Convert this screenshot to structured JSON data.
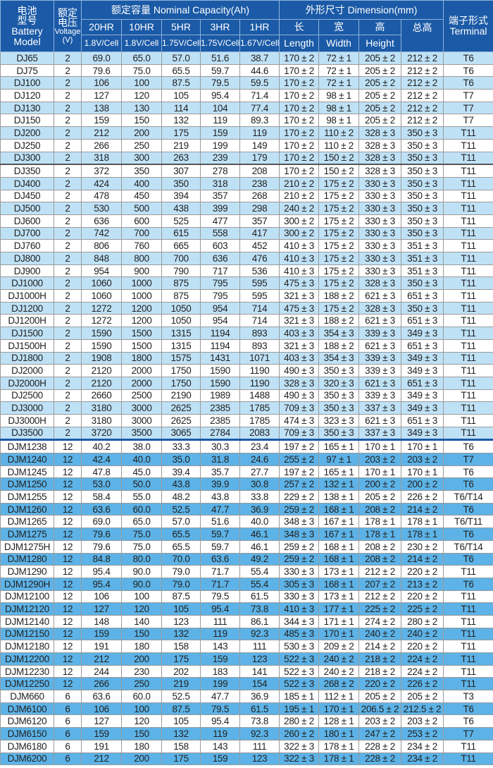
{
  "header": {
    "model": [
      "电池",
      "型号",
      "Battery",
      "Model"
    ],
    "voltage": [
      "额定",
      "电压",
      "Voltage",
      "(V)"
    ],
    "capacity_group": "额定容量 Nominal Capacity(Ah)",
    "dimension_group": "外形尺寸 Dimension(mm)",
    "terminal": [
      "端子形式",
      "Terminal"
    ],
    "rates": [
      "20HR",
      "10HR",
      "5HR",
      "3HR",
      "1HR"
    ],
    "cutoffs": [
      "1.8V/Cell",
      "1.8V/Cell",
      "1.75V/Cell",
      "1.75V/Cell",
      "1.67V/Cell"
    ],
    "dims_cn": [
      "长",
      "宽",
      "高",
      "总高"
    ],
    "dims_en": [
      "Length",
      "Width",
      "Height"
    ]
  },
  "colors": {
    "header": "#1b5aa6",
    "dj_alt_row": "#bfe1f6",
    "djm_alt_row": "#5db3e7"
  },
  "rows": [
    [
      "DJ65",
      "2",
      "69.0",
      "65.0",
      "57.0",
      "51.6",
      "38.7",
      "170 ± 2",
      "72 ± 1",
      "205 ± 2",
      "212 ± 2",
      "T6"
    ],
    [
      "DJ75",
      "2",
      "79.6",
      "75.0",
      "65.5",
      "59.7",
      "44.6",
      "170 ± 2",
      "72 ± 1",
      "205 ± 2",
      "212 ± 2",
      "T6"
    ],
    [
      "DJ100",
      "2",
      "106",
      "100",
      "87.5",
      "79.5",
      "59.5",
      "170 ± 2",
      "72 ± 1",
      "205 ± 2",
      "212 ± 2",
      "T6"
    ],
    [
      "DJ120",
      "2",
      "127",
      "120",
      "105",
      "95.4",
      "71.4",
      "170 ± 2",
      "98 ± 1",
      "205 ± 2",
      "212 ± 2",
      "T7"
    ],
    [
      "DJ130",
      "2",
      "138",
      "130",
      "114",
      "104",
      "77.4",
      "170 ± 2",
      "98 ± 1",
      "205 ± 2",
      "212 ± 2",
      "T7"
    ],
    [
      "DJ150",
      "2",
      "159",
      "150",
      "132",
      "119",
      "89.3",
      "170 ± 2",
      "98 ± 1",
      "205 ± 2",
      "212 ± 2",
      "T7"
    ],
    [
      "DJ200",
      "2",
      "212",
      "200",
      "175",
      "159",
      "119",
      "170 ± 2",
      "110 ± 2",
      "328 ± 3",
      "350 ± 3",
      "T11"
    ],
    [
      "DJ250",
      "2",
      "266",
      "250",
      "219",
      "199",
      "149",
      "170 ± 2",
      "110 ± 2",
      "328 ± 3",
      "350 ± 3",
      "T11"
    ],
    [
      "DJ300",
      "2",
      "318",
      "300",
      "263",
      "239",
      "179",
      "170 ± 2",
      "150 ± 2",
      "328 ± 3",
      "350 ± 3",
      "T11"
    ],
    [
      "DJ350",
      "2",
      "372",
      "350",
      "307",
      "278",
      "208",
      "170 ± 2",
      "150 ± 2",
      "328 ± 3",
      "350 ± 3",
      "T11"
    ],
    [
      "DJ400",
      "2",
      "424",
      "400",
      "350",
      "318",
      "238",
      "210 ± 2",
      "175 ± 2",
      "330 ± 3",
      "350 ± 3",
      "T11"
    ],
    [
      "DJ450",
      "2",
      "478",
      "450",
      "394",
      "357",
      "268",
      "210 ± 2",
      "175 ± 2",
      "330 ± 3",
      "350 ± 3",
      "T11"
    ],
    [
      "DJ500",
      "2",
      "530",
      "500",
      "438",
      "399",
      "298",
      "240 ± 2",
      "175 ± 2",
      "330 ± 3",
      "350 ± 3",
      "T11"
    ],
    [
      "DJ600",
      "2",
      "636",
      "600",
      "525",
      "477",
      "357",
      "300 ± 2",
      "175 ± 2",
      "330 ± 3",
      "350 ± 3",
      "T11"
    ],
    [
      "DJ700",
      "2",
      "742",
      "700",
      "615",
      "558",
      "417",
      "300 ± 2",
      "175 ± 2",
      "330 ± 3",
      "350 ± 3",
      "T11"
    ],
    [
      "DJ760",
      "2",
      "806",
      "760",
      "665",
      "603",
      "452",
      "410 ± 3",
      "175 ± 2",
      "330 ± 3",
      "351 ± 3",
      "T11"
    ],
    [
      "DJ800",
      "2",
      "848",
      "800",
      "700",
      "636",
      "476",
      "410 ± 3",
      "175 ± 2",
      "330 ± 3",
      "351 ± 3",
      "T11"
    ],
    [
      "DJ900",
      "2",
      "954",
      "900",
      "790",
      "717",
      "536",
      "410 ± 3",
      "175 ± 2",
      "330 ± 3",
      "351 ± 3",
      "T11"
    ],
    [
      "DJ1000",
      "2",
      "1060",
      "1000",
      "875",
      "795",
      "595",
      "475 ± 3",
      "175 ± 2",
      "328 ± 3",
      "350 ± 3",
      "T11"
    ],
    [
      "DJ1000H",
      "2",
      "1060",
      "1000",
      "875",
      "795",
      "595",
      "321 ± 3",
      "188 ± 2",
      "621 ± 3",
      "651 ± 3",
      "T11"
    ],
    [
      "DJ1200",
      "2",
      "1272",
      "1200",
      "1050",
      "954",
      "714",
      "475 ± 3",
      "175 ± 2",
      "328 ± 3",
      "350 ± 3",
      "T11"
    ],
    [
      "DJ1200H",
      "2",
      "1272",
      "1200",
      "1050",
      "954",
      "714",
      "321 ± 3",
      "188 ± 2",
      "621 ± 3",
      "651 ± 3",
      "T11"
    ],
    [
      "DJ1500",
      "2",
      "1590",
      "1500",
      "1315",
      "1194",
      "893",
      "403 ± 3",
      "354 ± 3",
      "339 ± 3",
      "349 ± 3",
      "T11"
    ],
    [
      "DJ1500H",
      "2",
      "1590",
      "1500",
      "1315",
      "1194",
      "893",
      "321 ± 3",
      "188 ± 2",
      "621 ± 3",
      "651 ± 3",
      "T11"
    ],
    [
      "DJ1800",
      "2",
      "1908",
      "1800",
      "1575",
      "1431",
      "1071",
      "403 ± 3",
      "354 ± 3",
      "339 ± 3",
      "349 ± 3",
      "T11"
    ],
    [
      "DJ2000",
      "2",
      "2120",
      "2000",
      "1750",
      "1590",
      "1190",
      "490 ± 3",
      "350 ± 3",
      "339 ± 3",
      "349 ± 3",
      "T11"
    ],
    [
      "DJ2000H",
      "2",
      "2120",
      "2000",
      "1750",
      "1590",
      "1190",
      "328 ± 3",
      "320 ± 3",
      "621 ± 3",
      "651 ± 3",
      "T11"
    ],
    [
      "DJ2500",
      "2",
      "2660",
      "2500",
      "2190",
      "1989",
      "1488",
      "490 ± 3",
      "350 ± 3",
      "339 ± 3",
      "349 ± 3",
      "T11"
    ],
    [
      "DJ3000",
      "2",
      "3180",
      "3000",
      "2625",
      "2385",
      "1785",
      "709 ± 3",
      "350 ± 3",
      "337 ± 3",
      "349 ± 3",
      "T11"
    ],
    [
      "DJ3000H",
      "2",
      "3180",
      "3000",
      "2625",
      "2385",
      "1785",
      "474 ± 3",
      "323 ± 3",
      "621 ± 3",
      "651 ± 3",
      "T11"
    ],
    [
      "DJ3500",
      "2",
      "3720",
      "3500",
      "3065",
      "2784",
      "2083",
      "709 ± 3",
      "350 ± 3",
      "337 ± 3",
      "349 ± 3",
      "T11"
    ],
    [
      "DJM1238",
      "12",
      "40.2",
      "38.0",
      "33.3",
      "30.3",
      "23.4",
      "197 ± 2",
      "165 ± 1",
      "170 ± 1",
      "170 ± 1",
      "T6"
    ],
    [
      "DJM1240",
      "12",
      "42.4",
      "40.0",
      "35.0",
      "31.8",
      "24.6",
      "255 ± 2",
      "97 ± 1",
      "203 ± 2",
      "203 ± 2",
      "T7"
    ],
    [
      "DJM1245",
      "12",
      "47.8",
      "45.0",
      "39.4",
      "35.7",
      "27.7",
      "197 ± 2",
      "165 ± 1",
      "170 ± 1",
      "170 ± 1",
      "T6"
    ],
    [
      "DJM1250",
      "12",
      "53.0",
      "50.0",
      "43.8",
      "39.9",
      "30.8",
      "257 ± 2",
      "132 ± 1",
      "200 ± 2",
      "200 ± 2",
      "T6"
    ],
    [
      "DJM1255",
      "12",
      "58.4",
      "55.0",
      "48.2",
      "43.8",
      "33.8",
      "229 ± 2",
      "138 ± 1",
      "205 ± 2",
      "226 ± 2",
      "T6/T14"
    ],
    [
      "DJM1260",
      "12",
      "63.6",
      "60.0",
      "52.5",
      "47.7",
      "36.9",
      "259 ± 2",
      "168 ± 1",
      "208 ± 2",
      "214 ± 2",
      "T6"
    ],
    [
      "DJM1265",
      "12",
      "69.0",
      "65.0",
      "57.0",
      "51.6",
      "40.0",
      "348 ± 3",
      "167 ± 1",
      "178 ± 1",
      "178 ± 1",
      "T6/T11"
    ],
    [
      "DJM1275",
      "12",
      "79.6",
      "75.0",
      "65.5",
      "59.7",
      "46.1",
      "348 ± 3",
      "167 ± 1",
      "178 ± 1",
      "178 ± 1",
      "T6"
    ],
    [
      "DJM1275H",
      "12",
      "79.6",
      "75.0",
      "65.5",
      "59.7",
      "46.1",
      "259 ± 2",
      "168 ± 1",
      "208 ± 2",
      "230 ± 2",
      "T6/T14"
    ],
    [
      "DJM1280",
      "12",
      "84.8",
      "80.0",
      "70.0",
      "63.6",
      "49.2",
      "259 ± 2",
      "168 ± 1",
      "208 ± 2",
      "214 ± 2",
      "T6"
    ],
    [
      "DJM1290",
      "12",
      "95.4",
      "90.0",
      "79.0",
      "71.7",
      "55.4",
      "330 ± 3",
      "173 ± 1",
      "212 ± 2",
      "220 ± 2",
      "T11"
    ],
    [
      "DJM1290H",
      "12",
      "95.4",
      "90.0",
      "79.0",
      "71.7",
      "55.4",
      "305 ± 3",
      "168 ± 1",
      "207 ± 2",
      "213 ± 2",
      "T6"
    ],
    [
      "DJM12100",
      "12",
      "106",
      "100",
      "87.5",
      "79.5",
      "61.5",
      "330 ± 3",
      "173 ± 1",
      "212 ± 2",
      "220 ± 2",
      "T11"
    ],
    [
      "DJM12120",
      "12",
      "127",
      "120",
      "105",
      "95.4",
      "73.8",
      "410 ± 3",
      "177 ± 1",
      "225 ± 2",
      "225 ± 2",
      "T11"
    ],
    [
      "DJM12140",
      "12",
      "148",
      "140",
      "123",
      "111",
      "86.1",
      "344 ± 3",
      "171 ± 1",
      "274 ± 2",
      "280 ± 2",
      "T11"
    ],
    [
      "DJM12150",
      "12",
      "159",
      "150",
      "132",
      "119",
      "92.3",
      "485 ± 3",
      "170 ± 1",
      "240 ± 2",
      "240 ± 2",
      "T11"
    ],
    [
      "DJM12180",
      "12",
      "191",
      "180",
      "158",
      "143",
      "111",
      "530 ± 3",
      "209 ± 2",
      "214 ± 2",
      "220 ± 2",
      "T11"
    ],
    [
      "DJM12200",
      "12",
      "212",
      "200",
      "175",
      "159",
      "123",
      "522 ± 3",
      "240 ± 2",
      "218 ± 2",
      "224 ± 2",
      "T11"
    ],
    [
      "DJM12230",
      "12",
      "244",
      "230",
      "202",
      "183",
      "141",
      "522 ± 3",
      "240 ± 2",
      "218 ± 2",
      "224 ± 2",
      "T11"
    ],
    [
      "DJM12250",
      "12",
      "266",
      "250",
      "219",
      "199",
      "154",
      "522 ± 3",
      "268 ± 2",
      "220 ± 2",
      "226 ± 2",
      "T11"
    ],
    [
      "DJM660",
      "6",
      "63.6",
      "60.0",
      "52.5",
      "47.7",
      "36.9",
      "185 ± 1",
      "112 ± 1",
      "205 ± 2",
      "205 ± 2",
      "T3"
    ],
    [
      "DJM6100",
      "6",
      "106",
      "100",
      "87.5",
      "79.5",
      "61.5",
      "195 ± 1",
      "170 ± 1",
      "206.5 ± 2",
      "212.5 ± 2",
      "T6"
    ],
    [
      "DJM6120",
      "6",
      "127",
      "120",
      "105",
      "95.4",
      "73.8",
      "280 ± 2",
      "128 ± 1",
      "203 ± 2",
      "203 ± 2",
      "T6"
    ],
    [
      "DJM6150",
      "6",
      "159",
      "150",
      "132",
      "119",
      "92.3",
      "260 ± 2",
      "180 ± 1",
      "247 ± 2",
      "253 ± 2",
      "T7"
    ],
    [
      "DJM6180",
      "6",
      "191",
      "180",
      "158",
      "143",
      "111",
      "322 ± 3",
      "178 ± 1",
      "228 ± 2",
      "234 ± 2",
      "T11"
    ],
    [
      "DJM6200",
      "6",
      "212",
      "200",
      "175",
      "159",
      "123",
      "322 ± 3",
      "178 ± 1",
      "228 ± 2",
      "234 ± 2",
      "T11"
    ]
  ]
}
